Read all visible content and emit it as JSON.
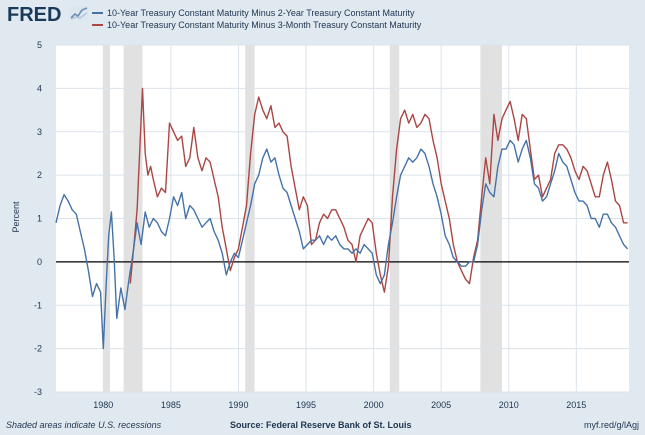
{
  "header": {
    "logo_text": "FRED",
    "logo_icon": "chart-line-icon"
  },
  "legend": [
    {
      "label": "10-Year Treasury Constant Maturity Minus 2-Year Treasury Constant Maturity",
      "color": "#4572a7"
    },
    {
      "label": "10-Year Treasury Constant Maturity Minus 3-Month Treasury Constant Maturity",
      "color": "#aa4643"
    }
  ],
  "footer": {
    "note": "Shaded areas indicate U.S. recessions",
    "source": "Source: Federal Reserve Bank of St. Louis",
    "link": "myf.red/g/lAgj"
  },
  "chart_data": {
    "type": "line",
    "ylabel": "Percent",
    "xlim": [
      1976.5,
      2018.9
    ],
    "ylim": [
      -3,
      5
    ],
    "yticks": [
      -3,
      -2,
      -1,
      0,
      1,
      2,
      3,
      4,
      5
    ],
    "xticks": [
      1980,
      1985,
      1990,
      1995,
      2000,
      2005,
      2010,
      2015
    ],
    "grid": true,
    "zero_line": true,
    "recessions": [
      [
        1980.0,
        1980.5
      ],
      [
        1981.5,
        1982.9
      ],
      [
        1990.5,
        1991.2
      ],
      [
        2001.2,
        2001.9
      ],
      [
        2007.9,
        2009.5
      ]
    ],
    "series": [
      {
        "name": "10-Year Treasury Constant Maturity Minus 2-Year Treasury Constant Maturity",
        "color": "#4572a7",
        "x": [
          1976.5,
          1976.8,
          1977.1,
          1977.4,
          1977.7,
          1978.0,
          1978.3,
          1978.6,
          1978.9,
          1979.2,
          1979.5,
          1979.8,
          1980.0,
          1980.2,
          1980.4,
          1980.6,
          1980.8,
          1981.0,
          1981.3,
          1981.6,
          1981.9,
          1982.2,
          1982.5,
          1982.8,
          1983.1,
          1983.4,
          1983.7,
          1984.0,
          1984.3,
          1984.6,
          1984.9,
          1985.2,
          1985.5,
          1985.8,
          1986.1,
          1986.4,
          1986.7,
          1987.0,
          1987.3,
          1987.6,
          1987.9,
          1988.2,
          1988.5,
          1988.8,
          1989.1,
          1989.4,
          1989.7,
          1990.0,
          1990.3,
          1990.6,
          1990.9,
          1991.2,
          1991.5,
          1991.8,
          1992.1,
          1992.4,
          1992.7,
          1993.0,
          1993.3,
          1993.6,
          1993.9,
          1994.2,
          1994.5,
          1994.8,
          1995.1,
          1995.4,
          1995.7,
          1996.0,
          1996.3,
          1996.6,
          1996.9,
          1997.2,
          1997.5,
          1997.8,
          1998.1,
          1998.4,
          1998.7,
          1999.0,
          1999.3,
          1999.6,
          1999.9,
          2000.2,
          2000.5,
          2000.8,
          2001.1,
          2001.4,
          2001.7,
          2002.0,
          2002.3,
          2002.6,
          2002.9,
          2003.2,
          2003.5,
          2003.8,
          2004.1,
          2004.4,
          2004.7,
          2005.0,
          2005.3,
          2005.6,
          2005.9,
          2006.2,
          2006.5,
          2006.8,
          2007.1,
          2007.4,
          2007.7,
          2008.0,
          2008.3,
          2008.6,
          2008.9,
          2009.2,
          2009.5,
          2009.8,
          2010.1,
          2010.4,
          2010.7,
          2011.0,
          2011.3,
          2011.6,
          2011.9,
          2012.2,
          2012.5,
          2012.8,
          2013.1,
          2013.4,
          2013.7,
          2014.0,
          2014.3,
          2014.6,
          2014.9,
          2015.2,
          2015.5,
          2015.8,
          2016.1,
          2016.4,
          2016.7,
          2017.0,
          2017.3,
          2017.6,
          2017.9,
          2018.2,
          2018.5,
          2018.8
        ],
        "y": [
          0.9,
          1.3,
          1.55,
          1.4,
          1.2,
          1.1,
          0.7,
          0.3,
          -0.2,
          -0.8,
          -0.5,
          -0.7,
          -2.0,
          -0.6,
          0.6,
          1.15,
          0.1,
          -1.3,
          -0.6,
          -1.1,
          -0.4,
          0.2,
          0.9,
          0.4,
          1.15,
          0.8,
          1.0,
          0.9,
          0.7,
          0.6,
          1.0,
          1.5,
          1.3,
          1.6,
          1.0,
          1.3,
          1.2,
          1.0,
          0.8,
          0.9,
          1.0,
          0.7,
          0.5,
          0.2,
          -0.3,
          0.0,
          0.2,
          0.1,
          0.5,
          0.9,
          1.3,
          1.8,
          2.0,
          2.4,
          2.6,
          2.3,
          2.4,
          2.0,
          1.7,
          1.6,
          1.3,
          1.0,
          0.7,
          0.3,
          0.4,
          0.5,
          0.5,
          0.6,
          0.4,
          0.6,
          0.5,
          0.6,
          0.4,
          0.3,
          0.3,
          0.2,
          0.3,
          0.2,
          0.4,
          0.3,
          0.2,
          -0.3,
          -0.5,
          -0.3,
          0.4,
          0.9,
          1.5,
          2.0,
          2.2,
          2.4,
          2.3,
          2.4,
          2.6,
          2.5,
          2.2,
          1.8,
          1.5,
          1.1,
          0.6,
          0.4,
          0.1,
          0.0,
          -0.1,
          -0.1,
          0.0,
          0.0,
          0.4,
          1.2,
          1.8,
          1.6,
          1.5,
          2.2,
          2.6,
          2.6,
          2.8,
          2.7,
          2.3,
          2.6,
          2.8,
          2.4,
          1.8,
          1.7,
          1.4,
          1.5,
          1.8,
          2.1,
          2.5,
          2.3,
          2.2,
          1.9,
          1.6,
          1.4,
          1.4,
          1.3,
          1.0,
          1.0,
          0.8,
          1.1,
          1.1,
          0.9,
          0.8,
          0.6,
          0.4,
          0.3
        ]
      },
      {
        "name": "10-Year Treasury Constant Maturity Minus 3-Month Treasury Constant Maturity",
        "color": "#aa4643",
        "x": [
          1982.0,
          1982.3,
          1982.5,
          1982.7,
          1982.9,
          1983.1,
          1983.3,
          1983.5,
          1983.7,
          1984.0,
          1984.3,
          1984.6,
          1984.9,
          1985.2,
          1985.5,
          1985.8,
          1986.1,
          1986.4,
          1986.7,
          1987.0,
          1987.3,
          1987.6,
          1987.9,
          1988.2,
          1988.5,
          1988.8,
          1989.1,
          1989.4,
          1989.7,
          1990.0,
          1990.3,
          1990.6,
          1990.9,
          1991.2,
          1991.5,
          1991.8,
          1992.1,
          1992.4,
          1992.7,
          1993.0,
          1993.3,
          1993.6,
          1993.9,
          1994.2,
          1994.5,
          1994.8,
          1995.1,
          1995.4,
          1995.7,
          1996.0,
          1996.3,
          1996.6,
          1996.9,
          1997.2,
          1997.5,
          1997.8,
          1998.1,
          1998.4,
          1998.7,
          1999.0,
          1999.3,
          1999.6,
          1999.9,
          2000.2,
          2000.5,
          2000.8,
          2001.1,
          2001.4,
          2001.7,
          2002.0,
          2002.3,
          2002.6,
          2002.9,
          2003.2,
          2003.5,
          2003.8,
          2004.1,
          2004.4,
          2004.7,
          2005.0,
          2005.3,
          2005.6,
          2005.9,
          2006.2,
          2006.5,
          2006.8,
          2007.1,
          2007.4,
          2007.7,
          2008.0,
          2008.3,
          2008.6,
          2008.9,
          2009.2,
          2009.5,
          2009.8,
          2010.1,
          2010.4,
          2010.7,
          2011.0,
          2011.3,
          2011.6,
          2011.9,
          2012.2,
          2012.5,
          2012.8,
          2013.1,
          2013.4,
          2013.7,
          2014.0,
          2014.3,
          2014.6,
          2014.9,
          2015.2,
          2015.5,
          2015.8,
          2016.1,
          2016.4,
          2016.7,
          2017.0,
          2017.3,
          2017.6,
          2017.9,
          2018.2,
          2018.5,
          2018.8
        ],
        "y": [
          -0.5,
          0.5,
          1.2,
          2.6,
          4.0,
          2.5,
          2.0,
          2.2,
          1.9,
          1.5,
          1.7,
          1.6,
          3.2,
          3.0,
          2.8,
          2.9,
          2.2,
          2.4,
          3.1,
          2.4,
          2.1,
          2.4,
          2.3,
          1.9,
          1.5,
          0.8,
          0.3,
          -0.2,
          0.1,
          0.3,
          0.8,
          1.3,
          2.5,
          3.4,
          3.8,
          3.5,
          3.3,
          3.6,
          3.1,
          3.2,
          3.0,
          2.9,
          2.2,
          1.7,
          1.2,
          1.5,
          1.3,
          0.4,
          0.5,
          0.9,
          1.1,
          1.0,
          1.2,
          1.2,
          1.0,
          0.8,
          0.5,
          0.4,
          0.0,
          0.6,
          0.8,
          1.0,
          0.9,
          0.2,
          -0.3,
          -0.7,
          -0.1,
          1.5,
          2.6,
          3.3,
          3.5,
          3.2,
          3.4,
          3.1,
          3.2,
          3.4,
          3.3,
          2.8,
          2.4,
          1.8,
          1.4,
          1.0,
          0.4,
          0.0,
          -0.2,
          -0.4,
          -0.5,
          0.1,
          0.5,
          1.5,
          2.4,
          1.8,
          3.4,
          2.8,
          3.3,
          3.5,
          3.7,
          3.3,
          2.8,
          3.4,
          3.3,
          2.6,
          1.9,
          2.0,
          1.5,
          1.7,
          1.9,
          2.5,
          2.7,
          2.7,
          2.6,
          2.4,
          2.1,
          1.9,
          2.2,
          2.1,
          1.8,
          1.5,
          1.5,
          2.0,
          2.3,
          1.9,
          1.4,
          1.3,
          0.9,
          0.9
        ]
      }
    ]
  }
}
